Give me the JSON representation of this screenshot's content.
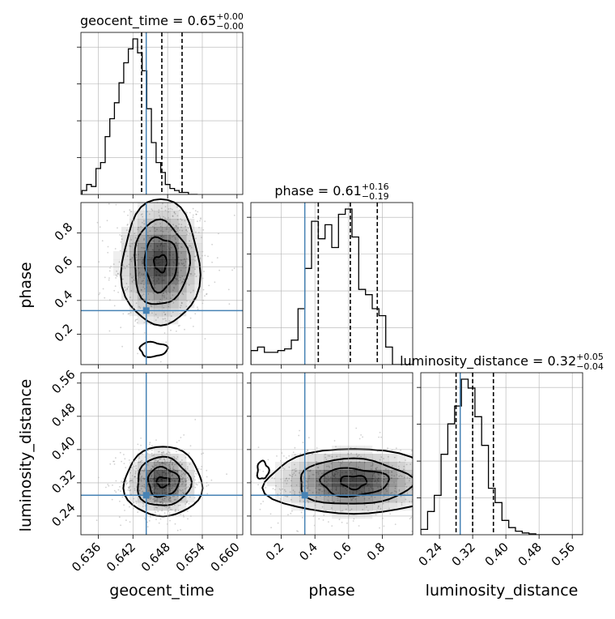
{
  "chart_data": {
    "type": "corner",
    "parameters": [
      {
        "name": "geocent_time",
        "median": 0.647,
        "title_value": "0.65",
        "err_plus": "+0.00",
        "err_minus": "−0.00",
        "range": [
          0.633,
          0.661
        ],
        "quantiles": [
          0.6435,
          0.647,
          0.6505
        ],
        "truth": 0.6443,
        "ticks": [
          0.636,
          0.642,
          0.648,
          0.654,
          0.66
        ],
        "tick_labels": [
          "0.636",
          "0.642",
          "0.648",
          "0.654",
          "0.660"
        ],
        "hist_edges_start": 0.6332,
        "hist_bin_width": 0.0008,
        "hist_counts": [
          0.2,
          0.5,
          0.4,
          1.3,
          1.6,
          2.9,
          3.8,
          4.6,
          5.6,
          6.6,
          7.3,
          7.8,
          7.1,
          6.2,
          4.3,
          2.6,
          1.6,
          1.1,
          0.5,
          0.3,
          0.2,
          0.1,
          0.1,
          0.0,
          0.0
        ]
      },
      {
        "name": "phase",
        "median": 0.61,
        "title_value": "0.61",
        "err_plus": "+0.16",
        "err_minus": "−0.19",
        "range": [
          0.02,
          0.98
        ],
        "quantiles": [
          0.42,
          0.61,
          0.77
        ],
        "truth": 0.34,
        "ticks": [
          0.2,
          0.4,
          0.6,
          0.8
        ],
        "tick_labels": [
          "0.2",
          "0.4",
          "0.6",
          "0.8"
        ],
        "hist_edges_start": 0.02,
        "hist_bin_width": 0.04,
        "hist_counts": [
          0.8,
          1.0,
          0.7,
          0.7,
          0.8,
          0.9,
          1.4,
          3.2,
          5.5,
          8.2,
          7.2,
          8.0,
          6.7,
          8.6,
          8.9,
          7.3,
          4.3,
          4.0,
          3.2,
          2.8,
          1.0,
          0.0,
          0.0,
          0.0
        ]
      },
      {
        "name": "luminosity_distance",
        "median": 0.32,
        "title_value": "0.32",
        "err_plus": "+0.05",
        "err_minus": "−0.04",
        "range": [
          0.195,
          0.585
        ],
        "quantiles": [
          0.28,
          0.32,
          0.37
        ],
        "truth": 0.29,
        "ticks": [
          0.24,
          0.32,
          0.4,
          0.48,
          0.56
        ],
        "tick_labels": [
          "0.24",
          "0.32",
          "0.40",
          "0.48",
          "0.56"
        ],
        "hist_edges_start": 0.195,
        "hist_bin_width": 0.0163,
        "hist_counts": [
          0.3,
          1.3,
          2.2,
          4.5,
          6.2,
          7.2,
          8.7,
          8.2,
          6.6,
          5.0,
          2.6,
          1.8,
          0.8,
          0.4,
          0.2,
          0.1,
          0.05,
          0.0,
          0.0,
          0.0,
          0.0,
          0.0,
          0.0,
          0.0
        ]
      }
    ],
    "hist1d_density_ticks": 4,
    "joint_peaks": {
      "phase_vs_geocent_time": {
        "main": [
          0.6468,
          0.64
        ],
        "secondary": [
          0.6455,
          0.12
        ]
      },
      "luminosity_distance_vs_geocent_time": {
        "main": [
          0.647,
          0.32
        ]
      },
      "luminosity_distance_vs_phase": {
        "main": [
          0.63,
          0.31
        ]
      }
    },
    "colors": {
      "truth": "#4682b4",
      "hist": "#000000",
      "quantile": "#000000",
      "grid": "#b0b0b0",
      "density": "#000000"
    },
    "grid": true,
    "legend": "none"
  }
}
